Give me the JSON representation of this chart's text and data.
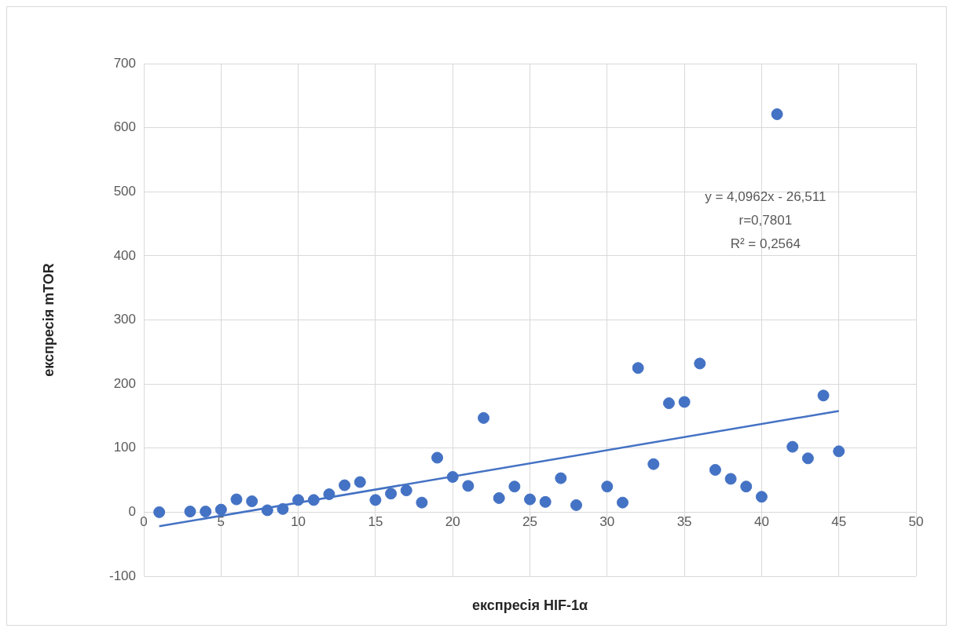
{
  "chart_data": {
    "type": "scatter",
    "xlabel": "експресія HIF-1α",
    "ylabel": "експресія mTOR",
    "annotations": [
      "y = 4,0962x - 26,511",
      "r=0,7801",
      "R² = 0,2564"
    ],
    "series": [
      {
        "type": "scatter",
        "marker": "circle",
        "color": "#4472c4",
        "x": [
          1,
          3,
          4,
          5,
          6,
          7,
          8,
          9,
          10,
          11,
          12,
          13,
          14,
          15,
          16,
          17,
          18,
          19,
          20,
          21,
          22,
          23,
          24,
          25,
          26,
          27,
          28,
          30,
          31,
          32,
          33,
          34,
          35,
          36,
          37,
          38,
          39,
          40,
          41,
          42,
          43,
          44,
          45
        ],
        "values": [
          0,
          1,
          1,
          4,
          20,
          17,
          3,
          5,
          19,
          19,
          28,
          42,
          47,
          19,
          29,
          34,
          15,
          85,
          55,
          41,
          147,
          22,
          40,
          20,
          16,
          53,
          11,
          40,
          15,
          225,
          75,
          170,
          172,
          232,
          66,
          52,
          40,
          24,
          621,
          102,
          84,
          182,
          95
        ]
      },
      {
        "type": "line",
        "marker": "none",
        "color": "#4472c4",
        "x": [
          1,
          45
        ],
        "values": [
          -22,
          158
        ]
      }
    ],
    "xlim": [
      0,
      50
    ],
    "xticks": [
      0,
      5,
      10,
      15,
      20,
      25,
      30,
      35,
      40,
      45,
      50
    ],
    "ylim": [
      -100,
      700
    ],
    "yticks": [
      -100,
      0,
      100,
      200,
      300,
      400,
      500,
      600,
      700
    ],
    "grid": true,
    "legend": false
  }
}
